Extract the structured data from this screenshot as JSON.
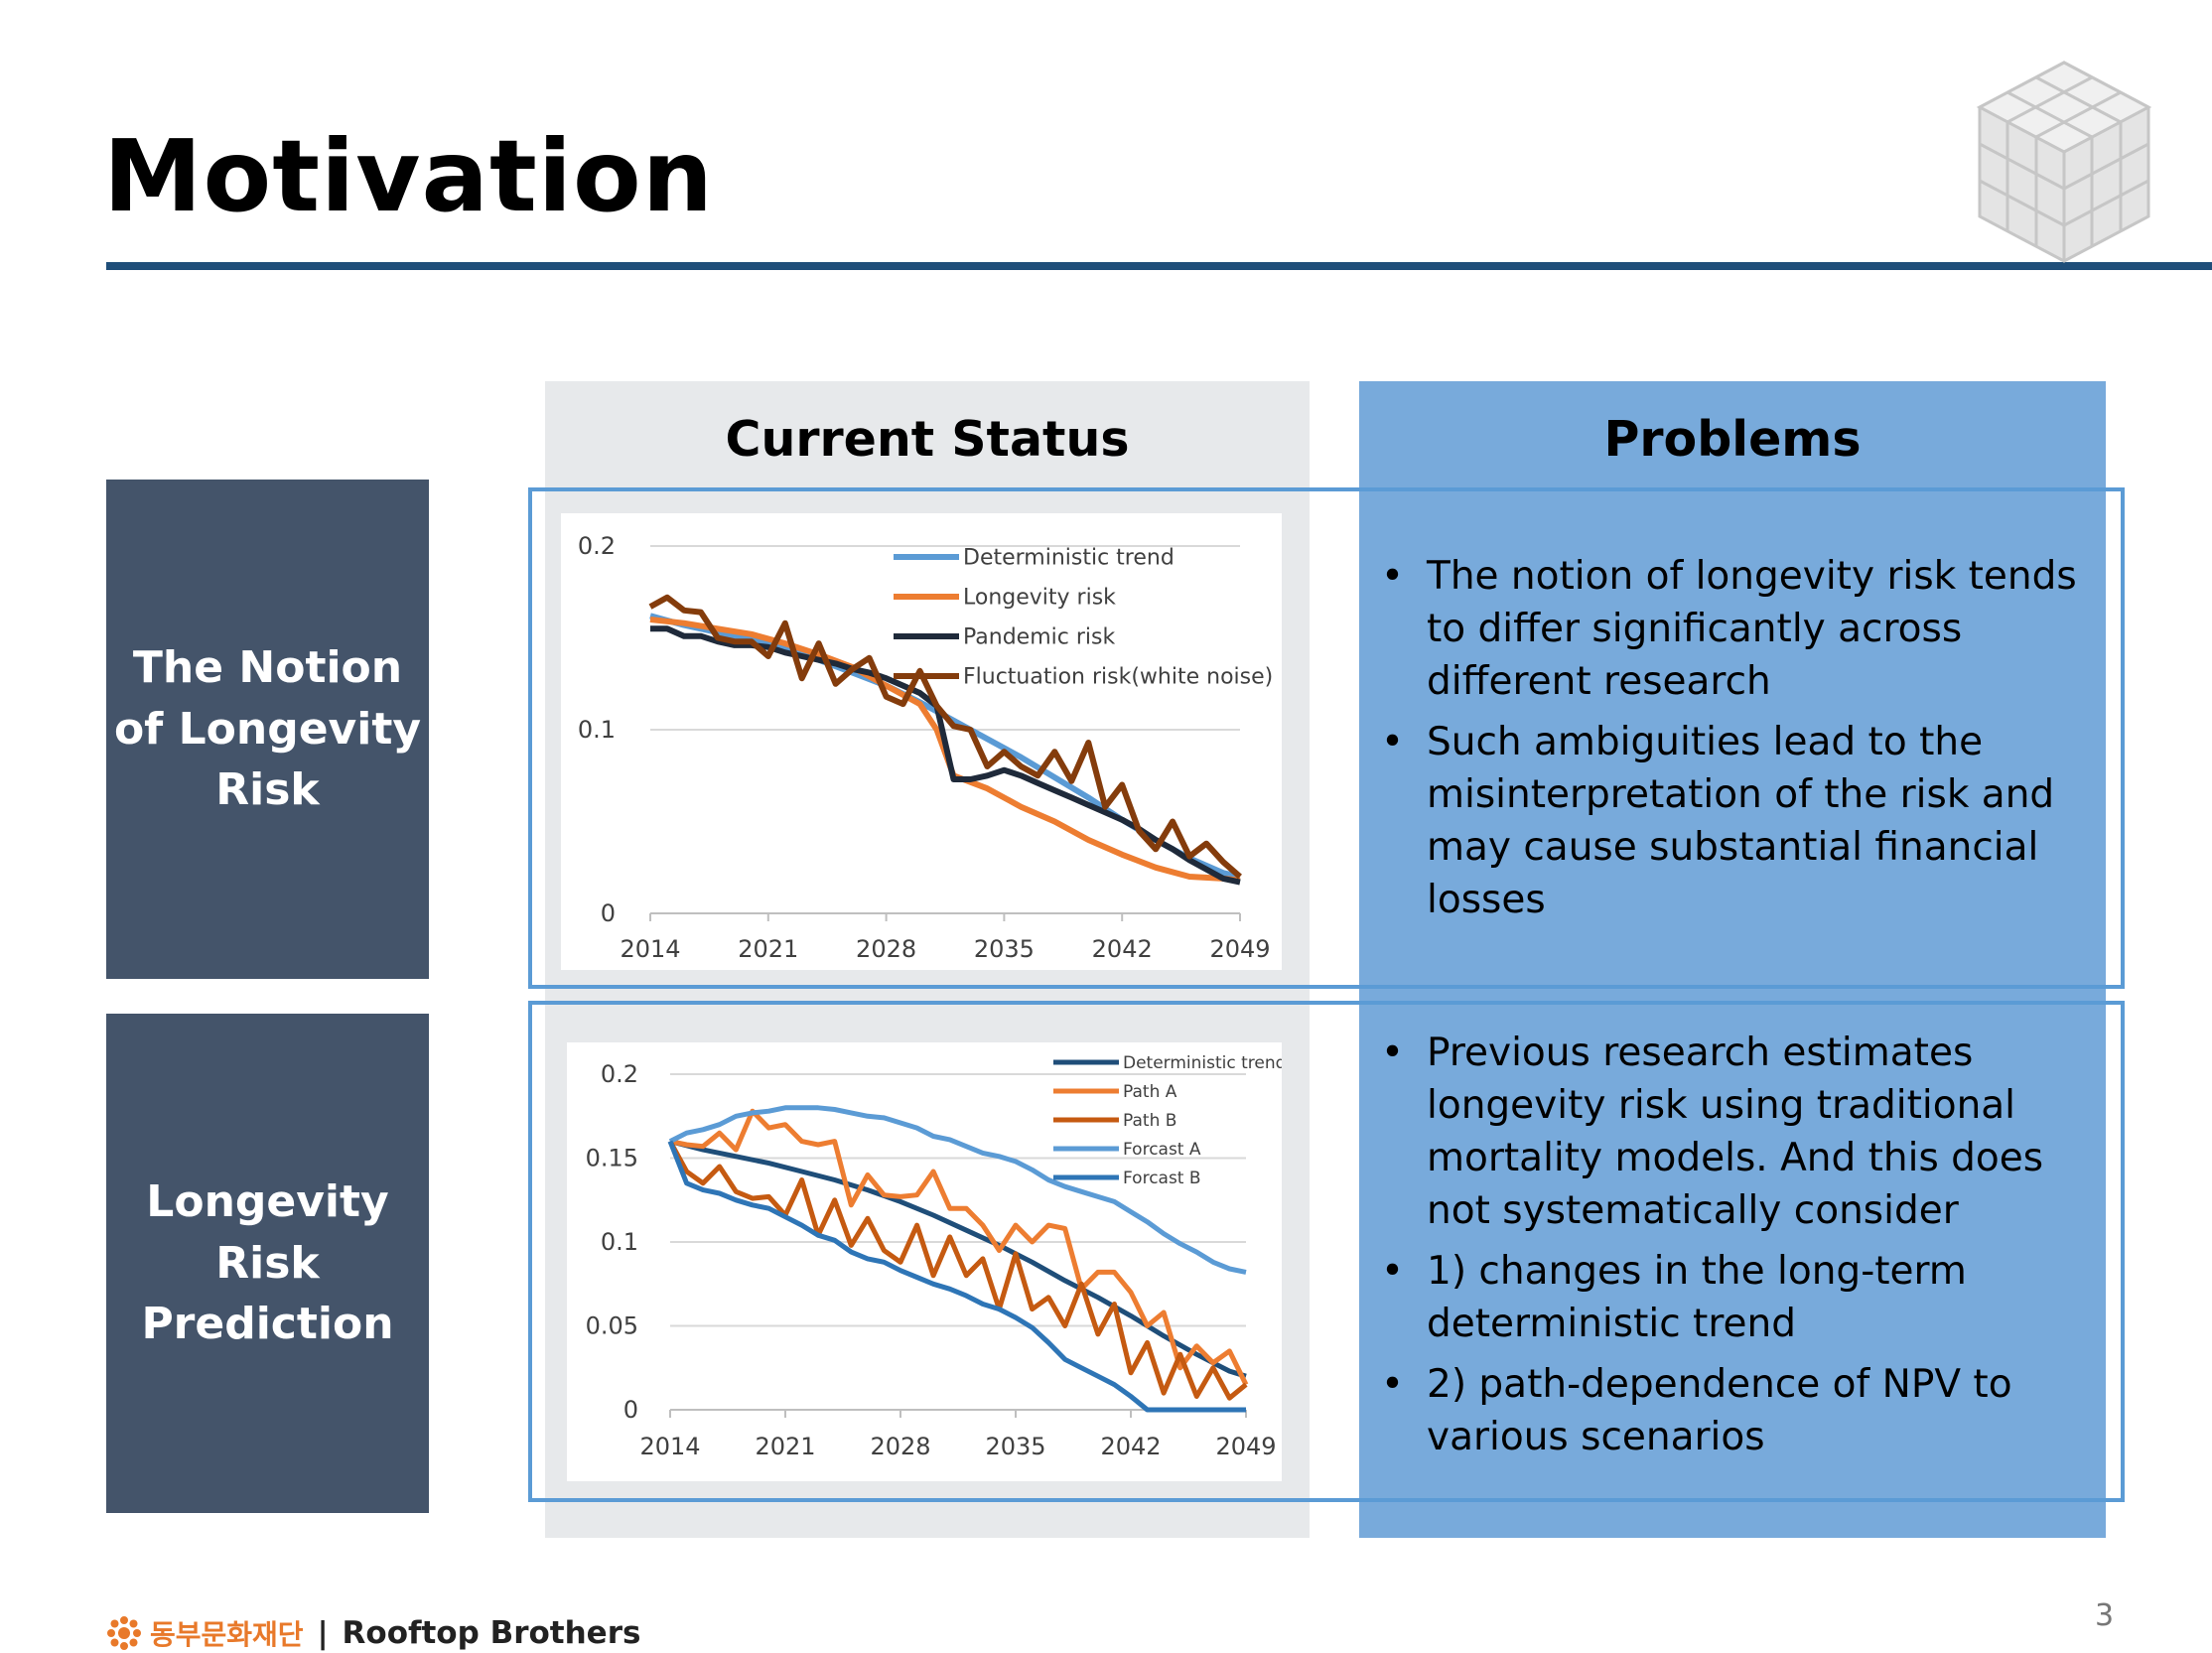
{
  "slide": {
    "title": "Motivation",
    "page_number": "3"
  },
  "rows": [
    {
      "label": "The Notion of Longevity Risk"
    },
    {
      "label": "Longevity Risk Prediction"
    }
  ],
  "panels": {
    "status_header": "Current Status",
    "problems_header": "Problems"
  },
  "problems": {
    "row1": [
      "The notion of longevity risk tends to differ significantly across different research",
      "Such ambiguities lead to the misinterpretation of the risk and may cause substantial financial losses"
    ],
    "row2": [
      "Previous research estimates longevity risk using traditional mortality models. And this does not systematically consider",
      "1) changes in the long-term deterministic trend",
      "2) path-dependence of NPV to various scenarios"
    ]
  },
  "footer": {
    "foundation": "동부문화재단",
    "separator": "|",
    "company": "Rooftop Brothers"
  },
  "colors": {
    "title_rule": "#1f4e79",
    "row_label_bg": "#44546a",
    "status_bg": "#e7e9eb",
    "problems_bg": "#78aadb",
    "frame": "#5b9bd5"
  },
  "chart_data": [
    {
      "type": "line",
      "ylim": [
        0,
        0.2
      ],
      "xlim": [
        2014,
        2049
      ],
      "yticks": [
        "0",
        "0.1",
        "0.2"
      ],
      "xticks": [
        "2014",
        "2021",
        "2028",
        "2035",
        "2042",
        "2049"
      ],
      "grid": true,
      "legend_position": "top-right",
      "series": [
        {
          "name": "Deterministic trend",
          "color": "#5b9bd5",
          "x": [
            2014,
            2016,
            2018,
            2020,
            2022,
            2024,
            2026,
            2028,
            2030,
            2032,
            2034,
            2036,
            2038,
            2040,
            2042,
            2044,
            2046,
            2048,
            2049
          ],
          "values": [
            0.162,
            0.157,
            0.153,
            0.149,
            0.144,
            0.138,
            0.131,
            0.124,
            0.115,
            0.105,
            0.095,
            0.085,
            0.074,
            0.063,
            0.051,
            0.04,
            0.03,
            0.022,
            0.02
          ]
        },
        {
          "name": "Longevity risk",
          "color": "#ed7d31",
          "x": [
            2014,
            2016,
            2018,
            2020,
            2022,
            2024,
            2026,
            2028,
            2030,
            2031,
            2032,
            2034,
            2036,
            2038,
            2040,
            2042,
            2044,
            2046,
            2048,
            2049
          ],
          "values": [
            0.16,
            0.158,
            0.155,
            0.152,
            0.147,
            0.141,
            0.134,
            0.124,
            0.114,
            0.1,
            0.075,
            0.068,
            0.058,
            0.05,
            0.04,
            0.032,
            0.025,
            0.02,
            0.019,
            0.018
          ]
        },
        {
          "name": "Pandemic risk",
          "color": "#1f2a3a",
          "x": [
            2014,
            2015,
            2016,
            2017,
            2018,
            2019,
            2020,
            2021,
            2022,
            2023,
            2024,
            2025,
            2026,
            2027,
            2028,
            2029,
            2030,
            2031,
            2032,
            2033,
            2034,
            2035,
            2036,
            2037,
            2038,
            2039,
            2040,
            2041,
            2042,
            2043,
            2044,
            2045,
            2046,
            2047,
            2048,
            2049
          ],
          "values": [
            0.155,
            0.155,
            0.151,
            0.151,
            0.148,
            0.146,
            0.146,
            0.145,
            0.142,
            0.14,
            0.138,
            0.136,
            0.133,
            0.131,
            0.128,
            0.124,
            0.12,
            0.113,
            0.073,
            0.073,
            0.075,
            0.078,
            0.075,
            0.071,
            0.067,
            0.063,
            0.059,
            0.055,
            0.051,
            0.046,
            0.04,
            0.035,
            0.029,
            0.024,
            0.019,
            0.017
          ]
        },
        {
          "name": "Fluctuation risk(white noise)",
          "color": "#843c0c",
          "x": [
            2014,
            2015,
            2016,
            2017,
            2018,
            2019,
            2020,
            2021,
            2022,
            2023,
            2024,
            2025,
            2026,
            2027,
            2028,
            2029,
            2030,
            2031,
            2032,
            2033,
            2034,
            2035,
            2036,
            2037,
            2038,
            2039,
            2040,
            2041,
            2042,
            2043,
            2044,
            2045,
            2046,
            2047,
            2048,
            2049
          ],
          "values": [
            0.167,
            0.172,
            0.165,
            0.164,
            0.15,
            0.148,
            0.148,
            0.14,
            0.158,
            0.128,
            0.147,
            0.125,
            0.133,
            0.139,
            0.118,
            0.114,
            0.132,
            0.113,
            0.102,
            0.1,
            0.08,
            0.088,
            0.08,
            0.075,
            0.088,
            0.072,
            0.093,
            0.058,
            0.07,
            0.045,
            0.035,
            0.05,
            0.031,
            0.038,
            0.028,
            0.02
          ]
        }
      ]
    },
    {
      "type": "line",
      "ylim": [
        0,
        0.2
      ],
      "xlim": [
        2014,
        2049
      ],
      "yticks": [
        "0",
        "0.05",
        "0.1",
        "0.15",
        "0.2"
      ],
      "xticks": [
        "2014",
        "2021",
        "2028",
        "2035",
        "2042",
        "2049"
      ],
      "grid": true,
      "legend_position": "top-right",
      "series": [
        {
          "name": "Deterministic trend",
          "color": "#1f4e79",
          "x": [
            2014,
            2016,
            2018,
            2020,
            2022,
            2024,
            2026,
            2028,
            2030,
            2032,
            2034,
            2036,
            2038,
            2040,
            2042,
            2044,
            2046,
            2048,
            2049
          ],
          "values": [
            0.16,
            0.155,
            0.151,
            0.147,
            0.142,
            0.137,
            0.131,
            0.124,
            0.116,
            0.107,
            0.098,
            0.088,
            0.077,
            0.067,
            0.056,
            0.044,
            0.033,
            0.023,
            0.02
          ]
        },
        {
          "name": "Path A",
          "color": "#ed7d31",
          "x": [
            2014,
            2015,
            2016,
            2017,
            2018,
            2019,
            2020,
            2021,
            2022,
            2023,
            2024,
            2025,
            2026,
            2027,
            2028,
            2029,
            2030,
            2031,
            2032,
            2033,
            2034,
            2035,
            2036,
            2037,
            2038,
            2039,
            2040,
            2041,
            2042,
            2043,
            2044,
            2045,
            2046,
            2047,
            2048,
            2049
          ],
          "values": [
            0.16,
            0.158,
            0.157,
            0.165,
            0.155,
            0.178,
            0.168,
            0.17,
            0.16,
            0.158,
            0.16,
            0.122,
            0.14,
            0.128,
            0.127,
            0.128,
            0.142,
            0.12,
            0.12,
            0.11,
            0.095,
            0.11,
            0.1,
            0.11,
            0.108,
            0.072,
            0.082,
            0.082,
            0.07,
            0.05,
            0.058,
            0.025,
            0.038,
            0.028,
            0.035,
            0.015
          ]
        },
        {
          "name": "Path B",
          "color": "#c55a11",
          "x": [
            2014,
            2015,
            2016,
            2017,
            2018,
            2019,
            2020,
            2021,
            2022,
            2023,
            2024,
            2025,
            2026,
            2027,
            2028,
            2029,
            2030,
            2031,
            2032,
            2033,
            2034,
            2035,
            2036,
            2037,
            2038,
            2039,
            2040,
            2041,
            2042,
            2043,
            2044,
            2045,
            2046,
            2047,
            2048,
            2049
          ],
          "values": [
            0.16,
            0.142,
            0.135,
            0.145,
            0.13,
            0.126,
            0.127,
            0.116,
            0.137,
            0.104,
            0.125,
            0.098,
            0.114,
            0.095,
            0.088,
            0.11,
            0.08,
            0.103,
            0.08,
            0.09,
            0.06,
            0.093,
            0.06,
            0.067,
            0.05,
            0.075,
            0.045,
            0.063,
            0.022,
            0.04,
            0.01,
            0.033,
            0.008,
            0.025,
            0.007,
            0.015
          ]
        },
        {
          "name": "Forcast A",
          "color": "#5b9bd5",
          "x": [
            2014,
            2015,
            2016,
            2017,
            2018,
            2019,
            2020,
            2021,
            2022,
            2023,
            2024,
            2025,
            2026,
            2027,
            2028,
            2029,
            2030,
            2031,
            2032,
            2033,
            2034,
            2035,
            2036,
            2037,
            2038,
            2039,
            2040,
            2041,
            2042,
            2043,
            2044,
            2045,
            2046,
            2047,
            2048,
            2049
          ],
          "values": [
            0.16,
            0.165,
            0.167,
            0.17,
            0.175,
            0.177,
            0.178,
            0.18,
            0.18,
            0.18,
            0.179,
            0.177,
            0.175,
            0.174,
            0.171,
            0.168,
            0.163,
            0.161,
            0.157,
            0.153,
            0.151,
            0.148,
            0.143,
            0.137,
            0.133,
            0.13,
            0.127,
            0.124,
            0.118,
            0.112,
            0.105,
            0.099,
            0.094,
            0.088,
            0.084,
            0.082
          ]
        },
        {
          "name": "Forcast B",
          "color": "#2e75b6",
          "x": [
            2014,
            2015,
            2016,
            2017,
            2018,
            2019,
            2020,
            2021,
            2022,
            2023,
            2024,
            2025,
            2026,
            2027,
            2028,
            2029,
            2030,
            2031,
            2032,
            2033,
            2034,
            2035,
            2036,
            2037,
            2038,
            2039,
            2040,
            2041,
            2042,
            2043,
            2044,
            2045,
            2046,
            2047,
            2048,
            2049
          ],
          "values": [
            0.16,
            0.135,
            0.131,
            0.129,
            0.125,
            0.122,
            0.12,
            0.115,
            0.11,
            0.104,
            0.101,
            0.094,
            0.09,
            0.088,
            0.083,
            0.079,
            0.075,
            0.072,
            0.068,
            0.063,
            0.06,
            0.055,
            0.049,
            0.04,
            0.03,
            0.025,
            0.02,
            0.015,
            0.008,
            0.0,
            0.0,
            0.0,
            0.0,
            0.0,
            0.0,
            0.0
          ]
        }
      ]
    }
  ]
}
